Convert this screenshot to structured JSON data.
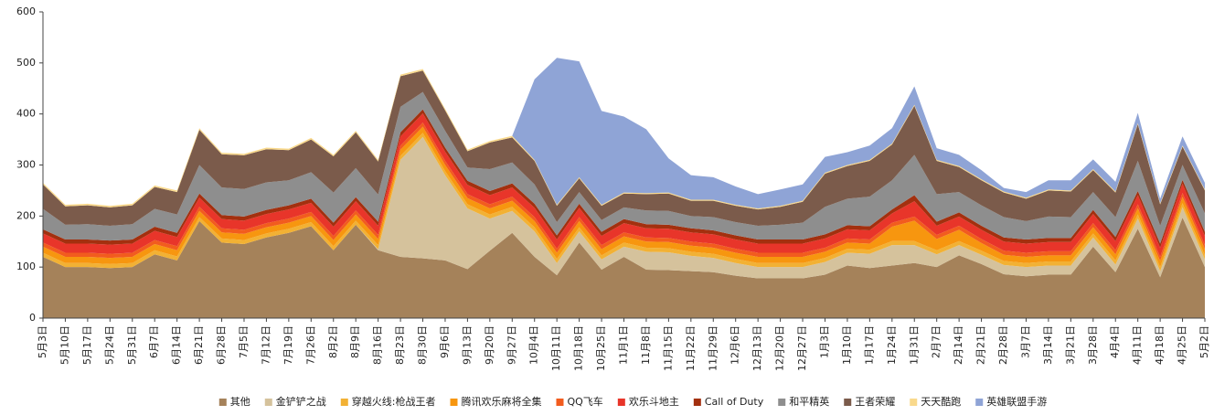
{
  "chart_data": {
    "type": "stacked_area",
    "categories": [
      "5月3日",
      "5月10日",
      "5月17日",
      "5月24日",
      "5月31日",
      "6月7日",
      "6月14日",
      "6月21日",
      "6月28日",
      "7月5日",
      "7月12日",
      "7月19日",
      "7月26日",
      "8月2日",
      "8月9日",
      "8月16日",
      "8月23日",
      "8月30日",
      "9月6日",
      "9月13日",
      "9月20日",
      "9月27日",
      "10月4日",
      "10月11日",
      "10月18日",
      "10月25日",
      "11月1日",
      "11月8日",
      "11月15日",
      "11月22日",
      "11月29日",
      "12月6日",
      "12月13日",
      "12月20日",
      "12月27日",
      "1月3日",
      "1月10日",
      "1月17日",
      "1月24日",
      "1月31日",
      "2月7日",
      "2月14日",
      "2月21日",
      "2月28日",
      "3月7日",
      "3月14日",
      "3月21日",
      "3月28日",
      "4月4日",
      "4月11日",
      "4月18日",
      "4月25日",
      "5月2日"
    ],
    "series": [
      {
        "name": "其他",
        "color": "#a5825a",
        "values": [
          120,
          100,
          100,
          98,
          100,
          125,
          113,
          190,
          148,
          145,
          158,
          167,
          180,
          133,
          183,
          133,
          120,
          117,
          113,
          96,
          132,
          167,
          120,
          84,
          148,
          95,
          120,
          95,
          94,
          92,
          90,
          83,
          78,
          78,
          78,
          85,
          103,
          98,
          103,
          108,
          100,
          123,
          106,
          86,
          82,
          85,
          85,
          140,
          90,
          175,
          80,
          197,
          100
        ]
      },
      {
        "name": "金铲铲之战",
        "color": "#d5c29c",
        "values": [
          0,
          0,
          0,
          0,
          0,
          0,
          0,
          0,
          0,
          0,
          0,
          0,
          0,
          0,
          0,
          2,
          190,
          238,
          167,
          119,
          63,
          43,
          50,
          24,
          22,
          20,
          20,
          35,
          35,
          30,
          28,
          25,
          22,
          22,
          22,
          25,
          25,
          28,
          40,
          35,
          25,
          20,
          18,
          18,
          18,
          18,
          18,
          18,
          15,
          20,
          12,
          20,
          15
        ]
      },
      {
        "name": "穿越火线:枪战王者",
        "color": "#f2b134",
        "values": [
          8,
          8,
          8,
          8,
          8,
          8,
          8,
          8,
          8,
          8,
          8,
          8,
          8,
          8,
          8,
          8,
          8,
          8,
          8,
          8,
          8,
          8,
          8,
          8,
          8,
          8,
          8,
          8,
          8,
          8,
          8,
          8,
          8,
          8,
          8,
          8,
          8,
          8,
          8,
          8,
          8,
          8,
          8,
          8,
          8,
          8,
          8,
          8,
          8,
          8,
          8,
          8,
          8
        ]
      },
      {
        "name": "腾讯欢乐麻将全集",
        "color": "#f7960f",
        "values": [
          12,
          12,
          12,
          12,
          12,
          12,
          12,
          12,
          12,
          12,
          12,
          12,
          12,
          12,
          12,
          12,
          12,
          12,
          12,
          12,
          12,
          12,
          12,
          12,
          12,
          12,
          12,
          12,
          12,
          12,
          12,
          12,
          12,
          12,
          12,
          12,
          12,
          12,
          28,
          40,
          22,
          22,
          15,
          12,
          12,
          12,
          12,
          12,
          12,
          12,
          12,
          12,
          12
        ]
      },
      {
        "name": "QQ飞车",
        "color": "#f25c1e",
        "values": [
          8,
          8,
          8,
          8,
          8,
          8,
          8,
          8,
          8,
          8,
          8,
          8,
          8,
          8,
          8,
          8,
          8,
          8,
          8,
          8,
          8,
          8,
          8,
          8,
          8,
          8,
          8,
          8,
          8,
          8,
          8,
          8,
          8,
          8,
          8,
          8,
          8,
          8,
          8,
          8,
          8,
          8,
          8,
          8,
          8,
          8,
          8,
          8,
          8,
          8,
          8,
          8,
          8
        ]
      },
      {
        "name": "欢乐斗地主",
        "color": "#e8352a",
        "values": [
          18,
          18,
          18,
          18,
          18,
          18,
          18,
          18,
          18,
          18,
          18,
          18,
          18,
          18,
          18,
          18,
          18,
          18,
          18,
          18,
          18,
          18,
          18,
          18,
          18,
          18,
          18,
          18,
          18,
          18,
          18,
          18,
          18,
          18,
          18,
          18,
          18,
          18,
          18,
          30,
          18,
          18,
          18,
          18,
          18,
          18,
          18,
          18,
          18,
          18,
          18,
          18,
          18
        ]
      },
      {
        "name": "Call of Duty",
        "color": "#a3300f",
        "values": [
          8,
          8,
          8,
          8,
          8,
          8,
          8,
          8,
          8,
          8,
          8,
          8,
          8,
          8,
          8,
          8,
          8,
          8,
          8,
          8,
          8,
          8,
          8,
          8,
          8,
          8,
          8,
          8,
          8,
          8,
          8,
          8,
          8,
          8,
          8,
          8,
          8,
          8,
          8,
          12,
          8,
          8,
          8,
          8,
          8,
          8,
          8,
          8,
          8,
          8,
          8,
          8,
          8
        ]
      },
      {
        "name": "和平精英",
        "color": "#8e8e8e",
        "values": [
          40,
          29,
          30,
          29,
          30,
          35,
          36,
          56,
          54,
          54,
          54,
          49,
          52,
          59,
          57,
          53,
          50,
          34,
          33,
          26,
          43,
          41,
          38,
          26,
          23,
          23,
          23,
          27,
          27,
          24,
          26,
          26,
          27,
          29,
          33,
          54,
          52,
          58,
          57,
          79,
          54,
          40,
          40,
          40,
          36,
          42,
          41,
          35,
          39,
          59,
          35,
          29,
          36
        ]
      },
      {
        "name": "王者荣耀",
        "color": "#7b5b4b",
        "values": [
          48,
          36,
          37,
          36,
          37,
          43,
          44,
          69,
          65,
          66,
          65,
          59,
          64,
          71,
          70,
          65,
          60,
          42,
          40,
          32,
          52,
          49,
          46,
          32,
          27,
          28,
          27,
          32,
          34,
          30,
          32,
          32,
          32,
          35,
          41,
          65,
          64,
          70,
          70,
          96,
          65,
          49,
          49,
          48,
          44,
          51,
          50,
          43,
          48,
          72,
          42,
          36,
          45
        ]
      },
      {
        "name": "天天酷跑",
        "color": "#f9d98c",
        "values": [
          3,
          3,
          3,
          3,
          3,
          3,
          3,
          3,
          3,
          3,
          3,
          3,
          3,
          3,
          3,
          3,
          3,
          3,
          3,
          3,
          3,
          3,
          2,
          2,
          2,
          2,
          2,
          2,
          2,
          2,
          2,
          2,
          2,
          2,
          2,
          2,
          2,
          2,
          2,
          2,
          2,
          2,
          2,
          2,
          2,
          2,
          2,
          2,
          2,
          2,
          2,
          2,
          2
        ]
      },
      {
        "name": "英雄联盟手游",
        "color": "#8fa4d6",
        "values": [
          0,
          0,
          0,
          0,
          0,
          0,
          0,
          0,
          0,
          0,
          0,
          0,
          0,
          0,
          0,
          0,
          0,
          0,
          0,
          0,
          0,
          0,
          158,
          288,
          227,
          184,
          149,
          125,
          67,
          48,
          44,
          36,
          28,
          32,
          32,
          31,
          25,
          28,
          30,
          36,
          23,
          22,
          18,
          7,
          11,
          18,
          20,
          19,
          19,
          20,
          9,
          18,
          13
        ]
      }
    ],
    "ylim": [
      0,
      600
    ],
    "yticks": [
      0,
      100,
      200,
      300,
      400,
      500,
      600
    ],
    "grid": false,
    "legend": "bottom"
  }
}
